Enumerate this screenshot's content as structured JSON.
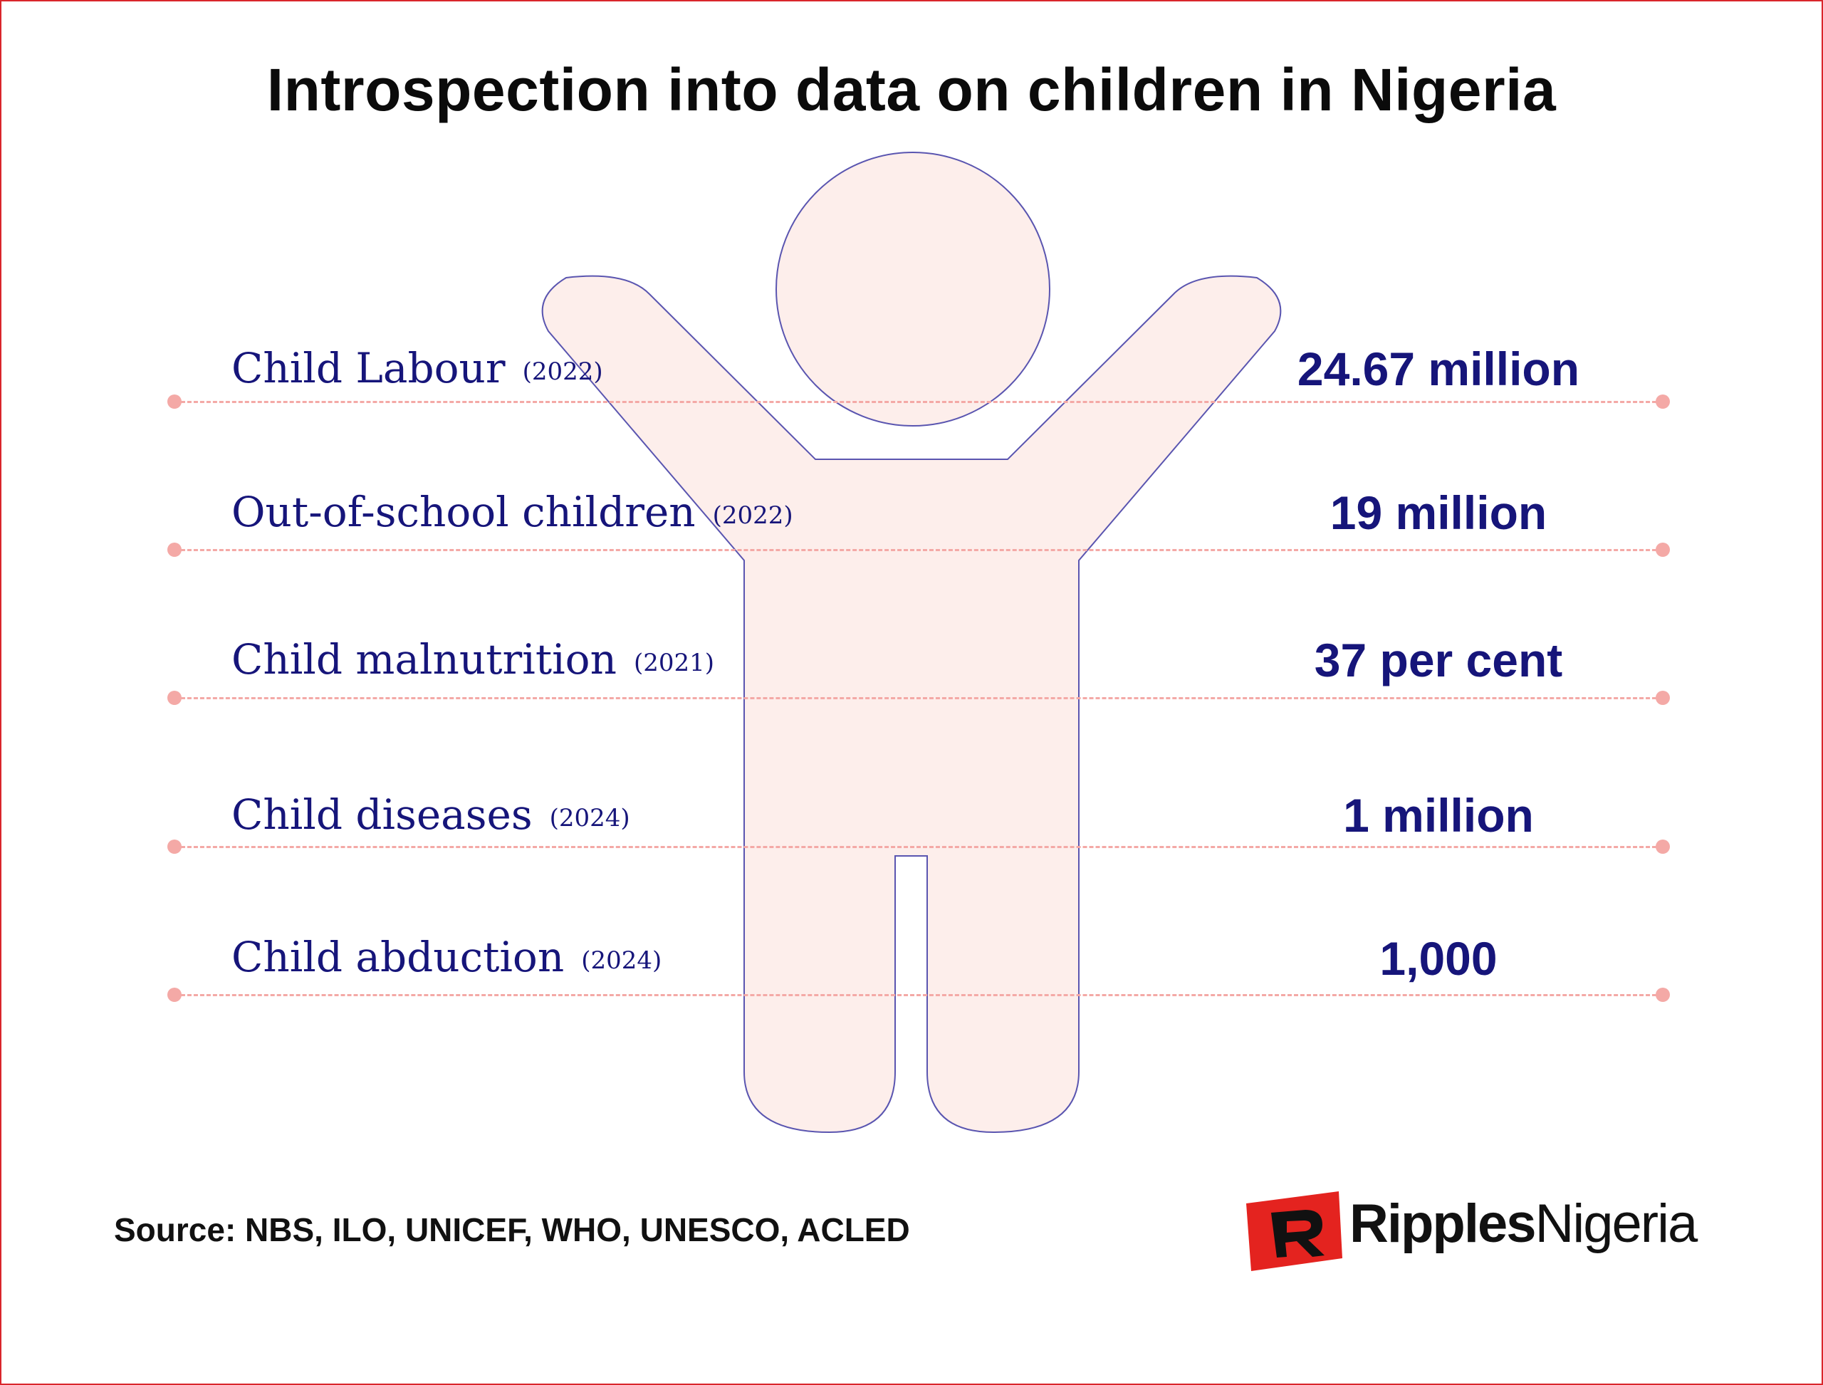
{
  "title": "Introspection into data on children in Nigeria",
  "rows": [
    {
      "label": "Child Labour",
      "year": "(2022)",
      "value": "24.67 million"
    },
    {
      "label": "Out-of-school children",
      "year": "(2022)",
      "value": "19 million"
    },
    {
      "label": "Child malnutrition",
      "year": "(2021)",
      "value": "37 per cent"
    },
    {
      "label": "Child diseases",
      "year": "(2024)",
      "value": "1 million"
    },
    {
      "label": "Child abduction",
      "year": "(2024)",
      "value": "1,000"
    }
  ],
  "source": "Source: NBS, ILO, UNICEF, WHO, UNESCO, ACLED",
  "logo": {
    "bold": "Ripples",
    "regular": "Nigeria"
  },
  "colors": {
    "text_navy": "#16157a",
    "figure_fill": "#fdeeeb",
    "figure_stroke": "#5a55b0",
    "dashed_line": "#f4a9a6",
    "logo_red": "#e4231f",
    "border": "#d9262b"
  },
  "icons": {
    "figure": "child-silhouette-icon",
    "logo": "ripples-nigeria-logo"
  }
}
